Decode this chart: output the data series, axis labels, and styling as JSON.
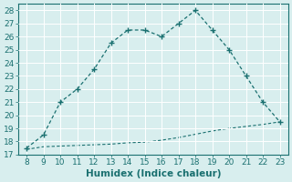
{
  "x": [
    8,
    9,
    10,
    11,
    12,
    13,
    14,
    15,
    16,
    17,
    18,
    19,
    20,
    21,
    22,
    23
  ],
  "y_main": [
    17.5,
    18.5,
    21.0,
    22.0,
    23.5,
    25.5,
    26.5,
    26.5,
    26.0,
    27.0,
    28.0,
    26.5,
    25.0,
    23.0,
    21.0,
    19.5
  ],
  "y_line2": [
    17.4,
    17.6,
    17.65,
    17.7,
    17.75,
    17.8,
    17.9,
    17.95,
    18.1,
    18.3,
    18.55,
    18.8,
    19.0,
    19.15,
    19.3,
    19.5
  ],
  "xlim": [
    7.5,
    23.5
  ],
  "ylim": [
    17,
    28.5
  ],
  "yticks": [
    17,
    18,
    19,
    20,
    21,
    22,
    23,
    24,
    25,
    26,
    27,
    28
  ],
  "xticks": [
    8,
    9,
    10,
    11,
    12,
    13,
    14,
    15,
    16,
    17,
    18,
    19,
    20,
    21,
    22,
    23
  ],
  "xlabel": "Humidex (Indice chaleur)",
  "line_color": "#1a7070",
  "bg_color": "#d8eeee",
  "grid_color": "#b8d8d8",
  "marker": "+",
  "fontsize_ticks": 6.5,
  "fontsize_xlabel": 7.5
}
